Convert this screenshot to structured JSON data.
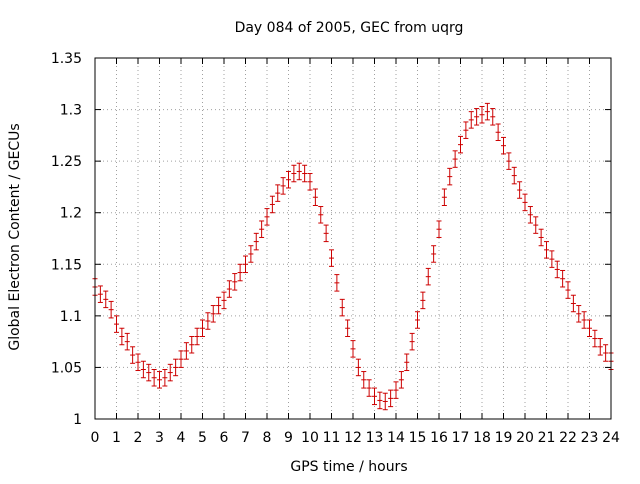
{
  "chart_data": {
    "type": "scatter",
    "title": "Day 084 of 2005, GEC from uqrg",
    "xlabel": "GPS time / hours",
    "ylabel": "Global Electron Content / GECUs",
    "xlim": [
      0,
      24
    ],
    "ylim": [
      1.0,
      1.35
    ],
    "xticks": [
      0,
      1,
      2,
      3,
      4,
      5,
      6,
      7,
      8,
      9,
      10,
      11,
      12,
      13,
      14,
      15,
      16,
      17,
      18,
      19,
      20,
      21,
      22,
      23,
      24
    ],
    "xtick_labels": [
      "0",
      "1",
      "2",
      "3",
      "4",
      "5",
      "6",
      "7",
      "8",
      "9",
      "10",
      "11",
      "12",
      "13",
      "14",
      "15",
      "16",
      "17",
      "18",
      "19",
      "20",
      "21",
      "22",
      "23",
      "24"
    ],
    "yticks": [
      1.0,
      1.05,
      1.1,
      1.15,
      1.2,
      1.25,
      1.3,
      1.35
    ],
    "ytick_labels": [
      "1",
      "1.05",
      "1.1",
      "1.15",
      "1.2",
      "1.25",
      "1.3",
      "1.35"
    ],
    "grid": true,
    "marker_color": "#cc0000",
    "series": [
      {
        "name": "GEC",
        "error": 0.008,
        "points": [
          [
            0.0,
            1.128
          ],
          [
            0.25,
            1.121
          ],
          [
            0.5,
            1.116
          ],
          [
            0.75,
            1.106
          ],
          [
            1.0,
            1.092
          ],
          [
            1.25,
            1.08
          ],
          [
            1.5,
            1.075
          ],
          [
            1.75,
            1.062
          ],
          [
            2.0,
            1.055
          ],
          [
            2.25,
            1.048
          ],
          [
            2.5,
            1.045
          ],
          [
            2.75,
            1.04
          ],
          [
            3.0,
            1.038
          ],
          [
            3.25,
            1.04
          ],
          [
            3.5,
            1.045
          ],
          [
            3.75,
            1.05
          ],
          [
            4.0,
            1.058
          ],
          [
            4.25,
            1.066
          ],
          [
            4.5,
            1.072
          ],
          [
            4.75,
            1.08
          ],
          [
            5.0,
            1.088
          ],
          [
            5.25,
            1.095
          ],
          [
            5.5,
            1.102
          ],
          [
            5.75,
            1.11
          ],
          [
            6.0,
            1.115
          ],
          [
            6.25,
            1.126
          ],
          [
            6.5,
            1.133
          ],
          [
            6.75,
            1.142
          ],
          [
            7.0,
            1.15
          ],
          [
            7.25,
            1.16
          ],
          [
            7.5,
            1.172
          ],
          [
            7.75,
            1.184
          ],
          [
            8.0,
            1.196
          ],
          [
            8.25,
            1.208
          ],
          [
            8.5,
            1.219
          ],
          [
            8.75,
            1.226
          ],
          [
            9.0,
            1.232
          ],
          [
            9.25,
            1.238
          ],
          [
            9.5,
            1.24
          ],
          [
            9.75,
            1.238
          ],
          [
            10.0,
            1.23
          ],
          [
            10.25,
            1.215
          ],
          [
            10.5,
            1.198
          ],
          [
            10.75,
            1.18
          ],
          [
            11.0,
            1.156
          ],
          [
            11.25,
            1.132
          ],
          [
            11.5,
            1.108
          ],
          [
            11.75,
            1.088
          ],
          [
            12.0,
            1.068
          ],
          [
            12.25,
            1.05
          ],
          [
            12.5,
            1.038
          ],
          [
            12.75,
            1.03
          ],
          [
            13.0,
            1.022
          ],
          [
            13.25,
            1.018
          ],
          [
            13.5,
            1.017
          ],
          [
            13.75,
            1.02
          ],
          [
            14.0,
            1.028
          ],
          [
            14.25,
            1.038
          ],
          [
            14.5,
            1.055
          ],
          [
            14.75,
            1.075
          ],
          [
            15.0,
            1.096
          ],
          [
            15.25,
            1.115
          ],
          [
            15.5,
            1.138
          ],
          [
            15.75,
            1.16
          ],
          [
            16.0,
            1.184
          ],
          [
            16.25,
            1.215
          ],
          [
            16.5,
            1.235
          ],
          [
            16.75,
            1.252
          ],
          [
            17.0,
            1.266
          ],
          [
            17.25,
            1.28
          ],
          [
            17.5,
            1.29
          ],
          [
            17.75,
            1.293
          ],
          [
            18.0,
            1.295
          ],
          [
            18.25,
            1.298
          ],
          [
            18.5,
            1.293
          ],
          [
            18.75,
            1.278
          ],
          [
            19.0,
            1.265
          ],
          [
            19.25,
            1.25
          ],
          [
            19.5,
            1.236
          ],
          [
            19.75,
            1.222
          ],
          [
            20.0,
            1.21
          ],
          [
            20.25,
            1.198
          ],
          [
            20.5,
            1.188
          ],
          [
            20.75,
            1.176
          ],
          [
            21.0,
            1.164
          ],
          [
            21.25,
            1.155
          ],
          [
            21.5,
            1.145
          ],
          [
            21.75,
            1.136
          ],
          [
            22.0,
            1.125
          ],
          [
            22.25,
            1.112
          ],
          [
            22.5,
            1.102
          ],
          [
            22.75,
            1.096
          ],
          [
            23.0,
            1.088
          ],
          [
            23.25,
            1.078
          ],
          [
            23.5,
            1.07
          ],
          [
            23.75,
            1.064
          ],
          [
            24.0,
            1.056
          ]
        ]
      }
    ]
  }
}
